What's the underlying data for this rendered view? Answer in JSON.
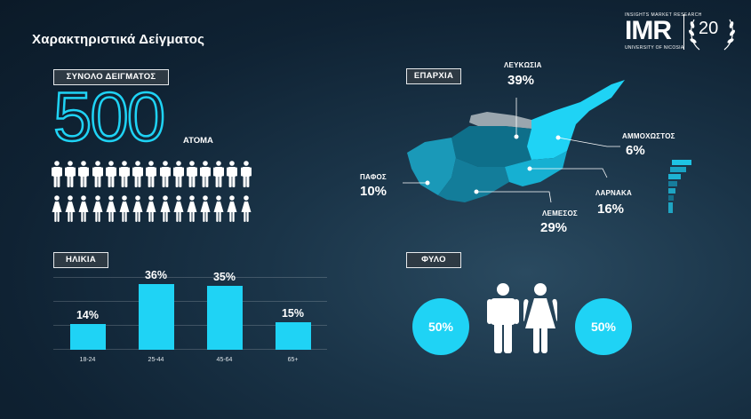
{
  "title": "Χαρακτηριστικά Δείγματος",
  "logo": {
    "top_text": "INSIGHTS MARKET RESEARCH",
    "brand": "IMR",
    "sub_text": "UNIVERSITY OF NICOSIA",
    "anniversary": "20"
  },
  "sample": {
    "label": "ΣΥΝΟΛΟ ΔΕΙΓΜΑΤΟΣ",
    "value": "500",
    "unit": "ΑΤΟΜΑ",
    "male_icons": 15,
    "female_icons": 15
  },
  "age": {
    "label": "ΗΛΙΚΙΑ",
    "chart_data": {
      "type": "bar",
      "categories": [
        "18-24",
        "25-44",
        "45-64",
        "65+"
      ],
      "values": [
        14,
        36,
        35,
        15
      ],
      "value_labels": [
        "14%",
        "36%",
        "35%",
        "15%"
      ],
      "ylim": [
        0,
        40
      ],
      "grid": true,
      "bar_color": "#1fd3f5"
    }
  },
  "region": {
    "label": "ΕΠΑΡΧΙΑ",
    "districts": [
      {
        "name": "ΛΕΥΚΩΣΙΑ",
        "value": "39%"
      },
      {
        "name": "ΑΜΜΟΧΩΣΤΟΣ",
        "value": "6%"
      },
      {
        "name": "ΠΑΦΟΣ",
        "value": "10%"
      },
      {
        "name": "ΛΑΡΝΑΚΑ",
        "value": "16%"
      },
      {
        "name": "ΛΕΜΕΣΟΣ",
        "value": "29%"
      }
    ]
  },
  "gender": {
    "label": "ΦΥΛΟ",
    "male": "50%",
    "female": "50%"
  },
  "colors": {
    "accent": "#1fd3f5",
    "label_bg": "#2e3a44"
  }
}
